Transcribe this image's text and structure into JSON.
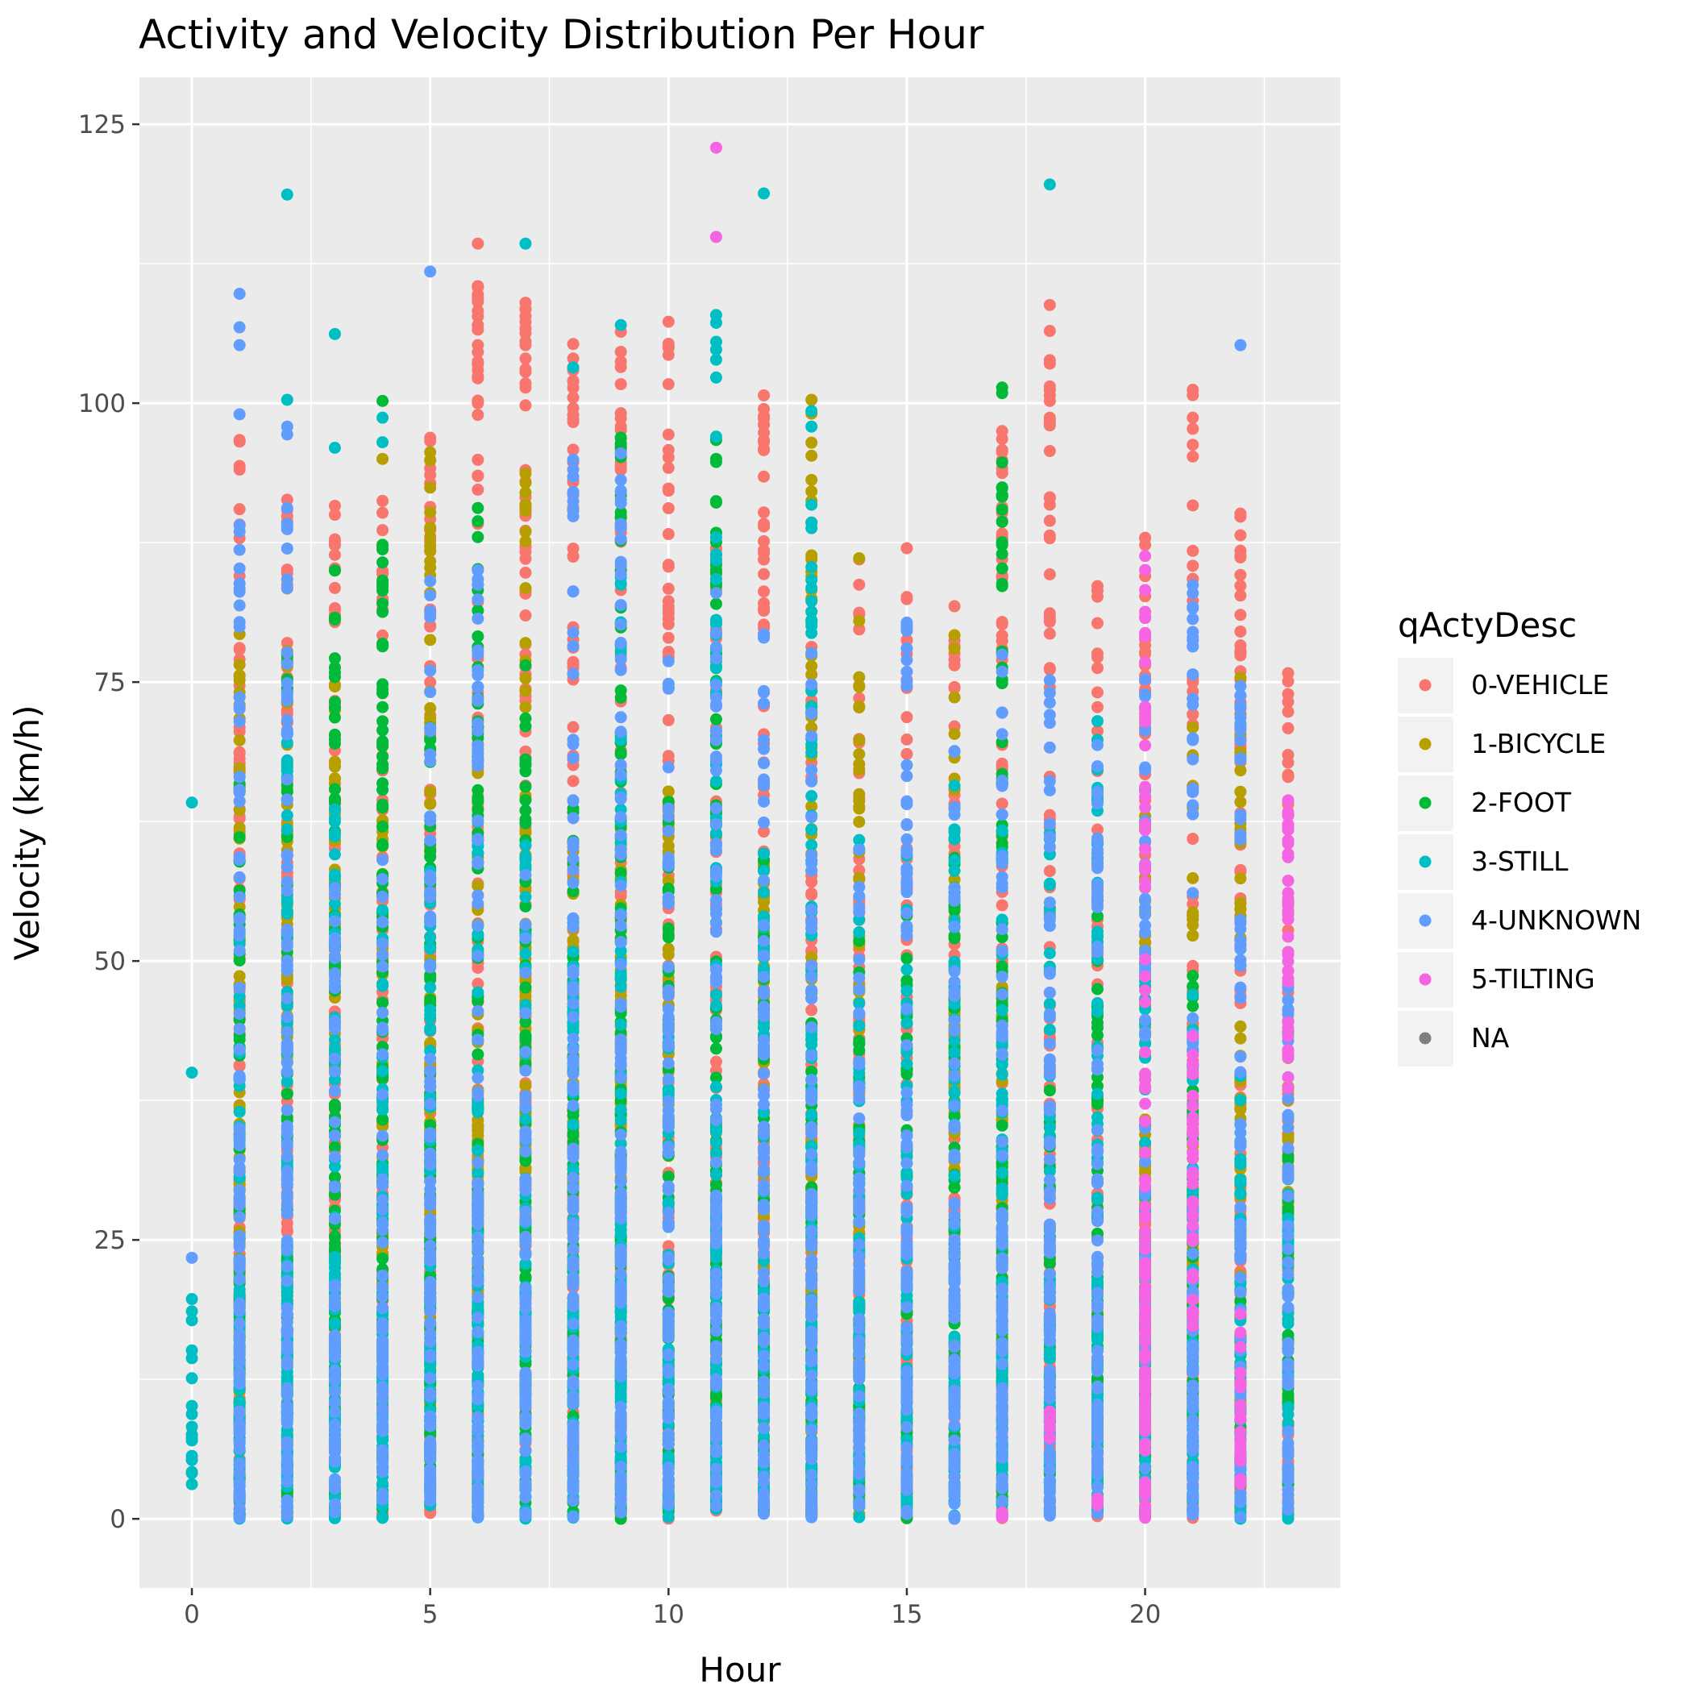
{
  "chart_data": {
    "type": "scatter",
    "title": "Activity and Velocity Distribution Per Hour",
    "xlabel": "Hour",
    "ylabel": "Velocity (km/h)",
    "xlim": [
      -1.1,
      24.1
    ],
    "ylim": [
      -6.2,
      129.2
    ],
    "x_ticks": [
      0,
      5,
      10,
      15,
      20
    ],
    "y_ticks": [
      0,
      25,
      50,
      75,
      100,
      125
    ],
    "grid": true,
    "legend": {
      "title": "qActyDesc",
      "placement": "right",
      "entries": [
        {
          "name": "0-VEHICLE",
          "color": "#F8766D"
        },
        {
          "name": "1-BICYCLE",
          "color": "#B79F00"
        },
        {
          "name": "2-FOOT",
          "color": "#00BA38"
        },
        {
          "name": "3-STILL",
          "color": "#00BFC4"
        },
        {
          "name": "4-UNKNOWN",
          "color": "#619CFF"
        },
        {
          "name": "5-TILTING",
          "color": "#F564E3"
        },
        {
          "name": "NA",
          "color": "#7F7F7F"
        }
      ]
    },
    "series": [
      {
        "name": "0-VEHICLE",
        "color": "#F8766D",
        "ranges": [
          [
            1,
            0,
            97
          ],
          [
            2,
            0,
            92
          ],
          [
            3,
            0,
            91
          ],
          [
            4,
            0,
            93
          ],
          [
            5,
            0,
            97
          ],
          [
            6,
            0,
            114
          ],
          [
            7,
            0,
            109
          ],
          [
            8,
            0,
            105
          ],
          [
            9,
            0,
            106
          ],
          [
            10,
            0,
            107
          ],
          [
            11,
            0,
            90
          ],
          [
            12,
            0,
            101
          ],
          [
            13,
            0,
            85
          ],
          [
            14,
            0,
            86
          ],
          [
            15,
            0,
            87
          ],
          [
            16,
            0,
            82
          ],
          [
            17,
            0,
            97
          ],
          [
            18,
            0,
            109
          ],
          [
            19,
            0,
            84
          ],
          [
            20,
            0,
            88
          ],
          [
            21,
            0,
            101
          ],
          [
            22,
            0,
            90
          ],
          [
            23,
            0,
            76
          ]
        ],
        "points": [
          [
            6,
            114.3
          ],
          [
            6,
            110.4
          ],
          [
            6,
            109.1
          ],
          [
            6,
            107.0
          ],
          [
            6,
            105.2
          ],
          [
            6,
            100.0
          ],
          [
            7,
            109.0
          ],
          [
            7,
            106.7
          ],
          [
            7,
            105.2
          ],
          [
            7,
            104.0
          ],
          [
            7,
            102.8
          ],
          [
            7,
            101.4
          ],
          [
            7,
            99.8
          ],
          [
            8,
            105.3
          ],
          [
            8,
            104.0
          ],
          [
            8,
            100.5
          ],
          [
            9,
            106.4
          ],
          [
            9,
            104.6
          ],
          [
            9,
            101.7
          ],
          [
            9,
            99.1
          ],
          [
            10,
            107.3
          ],
          [
            10,
            105.0
          ],
          [
            10,
            95.8
          ],
          [
            10,
            94.2
          ],
          [
            12,
            100.7
          ],
          [
            17,
            97.5
          ],
          [
            17,
            95.8
          ],
          [
            18,
            108.8
          ],
          [
            18,
            101.5
          ],
          [
            18,
            100.2
          ],
          [
            18,
            98.4
          ],
          [
            21,
            101.2
          ],
          [
            21,
            98.7
          ],
          [
            3,
            90.8
          ],
          [
            3,
            86.4
          ],
          [
            5,
            96.9
          ],
          [
            1,
            96.7
          ],
          [
            22,
            90.1
          ],
          [
            15,
            87.0
          ],
          [
            16,
            81.8
          ],
          [
            14,
            86.0
          ],
          [
            19,
            83.6
          ],
          [
            20,
            87.9
          ],
          [
            23,
            75.8
          ]
        ]
      },
      {
        "name": "1-BICYCLE",
        "color": "#B79F00",
        "ranges": [
          [
            1,
            10,
            78
          ],
          [
            2,
            40,
            82
          ],
          [
            3,
            40,
            75
          ],
          [
            4,
            20,
            65
          ],
          [
            5,
            15,
            95
          ],
          [
            6,
            20,
            72
          ],
          [
            7,
            30,
            93
          ],
          [
            8,
            30,
            60
          ],
          [
            9,
            25,
            65
          ],
          [
            10,
            30,
            66
          ],
          [
            12,
            5,
            60
          ],
          [
            13,
            0,
            100
          ],
          [
            14,
            0,
            80
          ],
          [
            16,
            30,
            79
          ],
          [
            17,
            10,
            50
          ],
          [
            20,
            20,
            63
          ],
          [
            21,
            15,
            74
          ],
          [
            22,
            10,
            75
          ],
          [
            23,
            25,
            44
          ]
        ],
        "points": [
          [
            13,
            100.3
          ],
          [
            13,
            86.0
          ],
          [
            14,
            86.1
          ],
          [
            14,
            80.5
          ],
          [
            16,
            79.2
          ],
          [
            4,
            95.0
          ],
          [
            5,
            95.6
          ],
          [
            7,
            93.7
          ],
          [
            22,
            75.4
          ],
          [
            23,
            29.3
          ],
          [
            20,
            63.0
          ],
          [
            21,
            63.7
          ],
          [
            1,
            79.3
          ]
        ]
      },
      {
        "name": "2-FOOT",
        "color": "#00BA38",
        "ranges": [
          [
            1,
            0,
            68
          ],
          [
            2,
            0,
            78
          ],
          [
            3,
            0,
            85
          ],
          [
            4,
            0,
            87
          ],
          [
            5,
            0,
            72
          ],
          [
            6,
            0,
            90
          ],
          [
            7,
            0,
            76
          ],
          [
            8,
            0,
            65
          ],
          [
            9,
            0,
            97
          ],
          [
            10,
            0,
            66
          ],
          [
            11,
            0,
            96
          ],
          [
            12,
            0,
            60
          ],
          [
            13,
            0,
            55
          ],
          [
            14,
            0,
            53
          ],
          [
            15,
            0,
            55
          ],
          [
            16,
            0,
            60
          ],
          [
            17,
            0,
            101
          ],
          [
            18,
            0,
            40
          ],
          [
            19,
            0,
            55
          ],
          [
            20,
            0,
            20
          ],
          [
            21,
            0,
            50
          ],
          [
            22,
            0,
            20
          ],
          [
            23,
            0,
            33
          ]
        ],
        "points": [
          [
            4,
            100.2
          ],
          [
            4,
            87.3
          ],
          [
            4,
            86.9
          ],
          [
            4,
            83.5
          ],
          [
            3,
            85.0
          ],
          [
            17,
            101.4
          ],
          [
            17,
            100.9
          ],
          [
            11,
            96.7
          ],
          [
            11,
            95.0
          ],
          [
            9,
            96.1
          ],
          [
            2,
            77.5
          ],
          [
            7,
            76.5
          ],
          [
            6,
            90.6
          ]
        ]
      },
      {
        "name": "3-STILL",
        "color": "#00BFC4",
        "ranges": [
          [
            0,
            0,
            11
          ],
          [
            1,
            0,
            52
          ],
          [
            2,
            0,
            70
          ],
          [
            3,
            0,
            67
          ],
          [
            4,
            0,
            55
          ],
          [
            5,
            0,
            60
          ],
          [
            6,
            0,
            64
          ],
          [
            7,
            0,
            61
          ],
          [
            8,
            0,
            55
          ],
          [
            9,
            0,
            90
          ],
          [
            10,
            0,
            45
          ],
          [
            11,
            0,
            92
          ],
          [
            12,
            0,
            60
          ],
          [
            13,
            0,
            86
          ],
          [
            14,
            0,
            62
          ],
          [
            15,
            0,
            60
          ],
          [
            16,
            0,
            66
          ],
          [
            17,
            0,
            62
          ],
          [
            18,
            0,
            62
          ],
          [
            19,
            0,
            71
          ],
          [
            20,
            0,
            50
          ],
          [
            21,
            0,
            48
          ],
          [
            22,
            0,
            40
          ],
          [
            23,
            0,
            31
          ]
        ],
        "points": [
          [
            0,
            64.2
          ],
          [
            0,
            40.0
          ],
          [
            0,
            19.7
          ],
          [
            0,
            18.6
          ],
          [
            0,
            17.8
          ],
          [
            0,
            15.1
          ],
          [
            0,
            14.4
          ],
          [
            0,
            12.6
          ],
          [
            1,
            52.5
          ],
          [
            2,
            118.7
          ],
          [
            2,
            100.3
          ],
          [
            2,
            88.9
          ],
          [
            3,
            106.2
          ],
          [
            3,
            96.0
          ],
          [
            4,
            98.7
          ],
          [
            4,
            96.5
          ],
          [
            7,
            114.3
          ],
          [
            8,
            103.2
          ],
          [
            9,
            107.0
          ],
          [
            11,
            107.9
          ],
          [
            11,
            107.2
          ],
          [
            11,
            105.5
          ],
          [
            11,
            104.8
          ],
          [
            11,
            103.9
          ],
          [
            11,
            102.3
          ],
          [
            11,
            97.0
          ],
          [
            12,
            118.8
          ],
          [
            13,
            99.3
          ],
          [
            13,
            97.9
          ],
          [
            13,
            90.9
          ],
          [
            13,
            89.3
          ],
          [
            13,
            88.8
          ],
          [
            18,
            119.6
          ],
          [
            19,
            71.5
          ]
        ]
      },
      {
        "name": "4-UNKNOWN",
        "color": "#619CFF",
        "ranges": [
          [
            1,
            0,
            90
          ],
          [
            2,
            0,
            90
          ],
          [
            3,
            0,
            60
          ],
          [
            4,
            0,
            60
          ],
          [
            5,
            0,
            85
          ],
          [
            6,
            0,
            86
          ],
          [
            7,
            0,
            60
          ],
          [
            8,
            0,
            95
          ],
          [
            9,
            0,
            95
          ],
          [
            10,
            0,
            80
          ],
          [
            11,
            0,
            83
          ],
          [
            12,
            0,
            80
          ],
          [
            13,
            0,
            78
          ],
          [
            14,
            0,
            60
          ],
          [
            15,
            0,
            82
          ],
          [
            16,
            0,
            70
          ],
          [
            17,
            0,
            80
          ],
          [
            18,
            0,
            78
          ],
          [
            19,
            0,
            70
          ],
          [
            20,
            0,
            78
          ],
          [
            21,
            0,
            84
          ],
          [
            22,
            0,
            75
          ],
          [
            23,
            0,
            48
          ]
        ],
        "points": [
          [
            0,
            23.4
          ],
          [
            1,
            109.8
          ],
          [
            1,
            106.8
          ],
          [
            1,
            105.2
          ],
          [
            1,
            99.0
          ],
          [
            2,
            97.9
          ],
          [
            2,
            97.2
          ],
          [
            2,
            90.6
          ],
          [
            5,
            111.8
          ],
          [
            22,
            105.2
          ],
          [
            21,
            83.7
          ],
          [
            9,
            95.5
          ]
        ]
      },
      {
        "name": "5-TILTING",
        "color": "#F564E3",
        "ranges": [
          [
            17,
            0,
            1
          ],
          [
            18,
            7,
            10
          ],
          [
            19,
            1,
            2
          ],
          [
            20,
            0,
            86
          ],
          [
            21,
            17,
            45
          ],
          [
            22,
            3,
            20
          ],
          [
            23,
            38,
            65
          ]
        ],
        "points": [
          [
            11,
            122.9
          ],
          [
            11,
            114.9
          ],
          [
            20,
            86.3
          ],
          [
            20,
            81.3
          ],
          [
            20,
            79.4
          ],
          [
            20,
            76.8
          ],
          [
            23,
            64.4
          ],
          [
            23,
            63.2
          ],
          [
            23,
            62.0
          ],
          [
            23,
            60.8
          ],
          [
            23,
            59.6
          ],
          [
            23,
            57.2
          ],
          [
            22,
            7.0
          ],
          [
            22,
            5.2
          ],
          [
            18,
            8.2
          ],
          [
            19,
            1.3
          ],
          [
            20,
            0.1
          ],
          [
            21,
            33.7
          ],
          [
            21,
            37.0
          ],
          [
            21,
            40.0
          ],
          [
            21,
            28.2
          ]
        ]
      }
    ]
  }
}
